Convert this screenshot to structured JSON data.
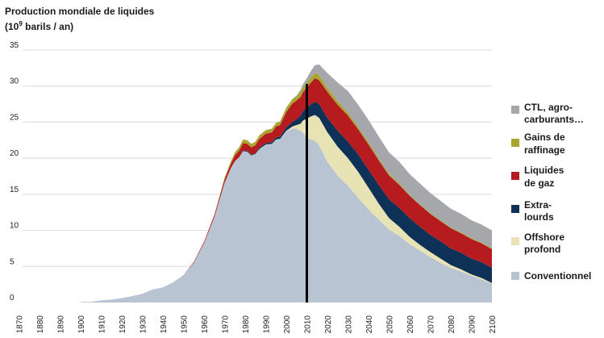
{
  "chart_data": {
    "type": "area",
    "stacked": true,
    "title_line1": "Production mondiale de liquides",
    "title_line2_prefix": "(10",
    "title_line2_exponent": "9",
    "title_line2_suffix": " barils / an)",
    "ylim": [
      0,
      35
    ],
    "xlim": [
      1870,
      2100
    ],
    "yticks": [
      "0",
      "5",
      "10",
      "15",
      "20",
      "25",
      "30",
      "35"
    ],
    "yticks_values": [
      0,
      5,
      10,
      15,
      20,
      25,
      30,
      35
    ],
    "xticks": [
      "1870",
      "1880",
      "1890",
      "1900",
      "1910",
      "1920",
      "1930",
      "1940",
      "1950",
      "1960",
      "1970",
      "1980",
      "1990",
      "2000",
      "2010",
      "2020",
      "2030",
      "2040",
      "2050",
      "2060",
      "2070",
      "2080",
      "2090",
      "2100"
    ],
    "xticks_values": [
      1870,
      1880,
      1890,
      1900,
      1910,
      1920,
      1930,
      1940,
      1950,
      1960,
      1970,
      1980,
      1990,
      2000,
      2010,
      2020,
      2030,
      2040,
      2050,
      2060,
      2070,
      2080,
      2090,
      2100
    ],
    "grid": "horizontal",
    "legend_position": "right",
    "vline_x": 2010,
    "x": [
      1900,
      1905,
      1910,
      1915,
      1920,
      1925,
      1930,
      1935,
      1940,
      1945,
      1950,
      1955,
      1960,
      1965,
      1970,
      1973,
      1975,
      1977,
      1979,
      1981,
      1983,
      1985,
      1987,
      1990,
      1993,
      1995,
      1997,
      2000,
      2003,
      2005,
      2007,
      2008,
      2010,
      2012,
      2014,
      2016,
      2020,
      2025,
      2030,
      2035,
      2040,
      2045,
      2050,
      2055,
      2060,
      2065,
      2070,
      2075,
      2080,
      2085,
      2090,
      2095,
      2100
    ],
    "series": [
      {
        "name": "Conventionnel",
        "color": "#b8c4d1",
        "values": [
          0.1,
          0.1,
          0.3,
          0.4,
          0.6,
          0.9,
          1.2,
          1.8,
          2.1,
          2.8,
          3.8,
          5.5,
          8.2,
          11.8,
          16.6,
          18.6,
          19.6,
          20.1,
          21.0,
          20.9,
          20.4,
          20.6,
          21.3,
          21.9,
          22.0,
          22.6,
          22.7,
          23.7,
          24.1,
          24.1,
          23.8,
          23.6,
          22.9,
          22.6,
          22.4,
          21.8,
          19.5,
          17.6,
          16.2,
          14.5,
          12.9,
          11.5,
          10.1,
          9.2,
          8.1,
          7.2,
          6.3,
          5.5,
          4.8,
          4.3,
          3.7,
          3.2,
          2.6
        ]
      },
      {
        "name": "Offshore profond",
        "color": "#e8e3b5",
        "values": [
          0,
          0,
          0,
          0,
          0,
          0,
          0,
          0,
          0,
          0,
          0,
          0,
          0,
          0,
          0,
          0,
          0,
          0,
          0,
          0,
          0,
          0,
          0,
          0,
          0,
          0,
          0,
          0.1,
          0.3,
          0.5,
          1.0,
          1.6,
          2.6,
          3.2,
          3.6,
          3.8,
          4.1,
          4.0,
          3.8,
          3.6,
          3.0,
          2.2,
          1.6,
          1.3,
          1.0,
          0.8,
          0.7,
          0.6,
          0.4,
          0.3,
          0.2,
          0.2,
          0.1
        ]
      },
      {
        "name": "Extra-lourds",
        "color": "#0d3157",
        "values": [
          0,
          0,
          0,
          0,
          0,
          0,
          0,
          0,
          0,
          0,
          0,
          0,
          0,
          0,
          0,
          0,
          0,
          0,
          0.1,
          0.1,
          0.1,
          0.1,
          0.2,
          0.2,
          0.2,
          0.3,
          0.3,
          0.5,
          0.6,
          0.8,
          1.1,
          1.3,
          1.5,
          1.7,
          1.8,
          1.9,
          2.0,
          2.2,
          2.3,
          2.4,
          2.5,
          2.6,
          2.6,
          2.6,
          2.6,
          2.5,
          2.4,
          2.4,
          2.3,
          2.3,
          2.2,
          2.2,
          2.1
        ]
      },
      {
        "name": "Liquides de gaz",
        "color": "#b51b1f",
        "values": [
          0,
          0,
          0,
          0,
          0,
          0,
          0,
          0,
          0,
          0,
          0,
          0.1,
          0.2,
          0.3,
          0.5,
          0.6,
          0.8,
          0.9,
          1.0,
          1.0,
          1.0,
          1.1,
          1.2,
          1.3,
          1.4,
          1.5,
          1.6,
          2.1,
          2.6,
          2.6,
          2.6,
          2.6,
          2.8,
          3.0,
          3.3,
          3.3,
          3.6,
          3.6,
          3.6,
          3.5,
          3.5,
          3.4,
          3.3,
          3.2,
          3.1,
          3.0,
          2.9,
          2.8,
          2.8,
          2.7,
          2.7,
          2.6,
          2.6
        ]
      },
      {
        "name": "Gains de raffinage",
        "color": "#a8a530",
        "values": [
          0,
          0,
          0,
          0,
          0,
          0,
          0,
          0,
          0,
          0,
          0,
          0,
          0,
          0,
          0.2,
          0.3,
          0.4,
          0.5,
          0.5,
          0.5,
          0.5,
          0.5,
          0.5,
          0.5,
          0.5,
          0.5,
          0.5,
          0.6,
          0.6,
          0.6,
          0.7,
          0.7,
          0.7,
          0.7,
          0.7,
          0.7,
          0.6,
          0.5,
          0.4,
          0.3,
          0.3,
          0.2,
          0.2,
          0.2,
          0.1,
          0.1,
          0.1,
          0.1,
          0.1,
          0.1,
          0.1,
          0.1,
          0.1
        ]
      },
      {
        "name": "CTL, agro-carburants…",
        "color": "#a5a7aa",
        "values": [
          0,
          0,
          0,
          0,
          0,
          0,
          0,
          0,
          0,
          0,
          0,
          0,
          0,
          0,
          0,
          0,
          0,
          0,
          0,
          0,
          0,
          0,
          0,
          0,
          0,
          0,
          0,
          0,
          0,
          0.1,
          0.3,
          0.4,
          0.6,
          0.9,
          1.1,
          1.5,
          2.0,
          2.6,
          3.0,
          3.1,
          3.1,
          3.1,
          3.0,
          3.0,
          2.9,
          2.9,
          2.8,
          2.7,
          2.6,
          2.6,
          2.5,
          2.5,
          2.5
        ]
      }
    ],
    "legend": [
      {
        "line1": "CTL, agro-",
        "line2": "carburants…",
        "color": "#a5a7aa"
      },
      {
        "line1": "Gains de",
        "line2": "raffinage",
        "color": "#a8a530"
      },
      {
        "line1": "Liquides",
        "line2": "de gaz",
        "color": "#b51b1f"
      },
      {
        "line1": "Extra-",
        "line2": "lourds",
        "color": "#0d3157"
      },
      {
        "line1": "Offshore",
        "line2": "profond",
        "color": "#e8e3b5"
      },
      {
        "line1": "Conventionnel",
        "line2": "",
        "color": "#b8c4d1"
      }
    ]
  }
}
